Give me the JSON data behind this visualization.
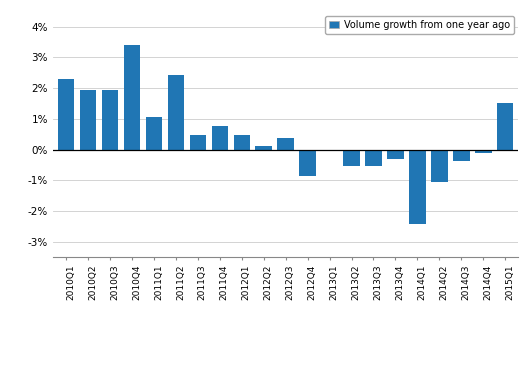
{
  "categories": [
    "2010Q1",
    "2010Q2",
    "2010Q3",
    "2010Q4",
    "2011Q1",
    "2011Q2",
    "2011Q3",
    "2011Q4",
    "2012Q1",
    "2012Q2",
    "2012Q3",
    "2012Q4",
    "2013Q1",
    "2013Q2",
    "2013Q3",
    "2013Q4",
    "2014Q1",
    "2014Q2",
    "2014Q3",
    "2014Q4",
    "2015Q1"
  ],
  "values": [
    2.3,
    1.95,
    1.95,
    3.4,
    1.05,
    2.42,
    0.48,
    0.77,
    0.48,
    0.12,
    0.37,
    -0.87,
    -0.05,
    -0.55,
    -0.52,
    -0.32,
    -2.42,
    -1.07,
    -0.38,
    -0.12,
    1.5
  ],
  "bar_color": "#2076b4",
  "legend_label": "Volume growth from one year ago",
  "ylim": [
    -3.5,
    4.5
  ],
  "yticks": [
    -3,
    -2,
    -1,
    0,
    1,
    2,
    3,
    4
  ],
  "ytick_labels": [
    "-3%",
    "-2%",
    "-1%",
    "0%",
    "1%",
    "2%",
    "3%",
    "4%"
  ],
  "background_color": "#ffffff",
  "grid_color": "#cccccc"
}
